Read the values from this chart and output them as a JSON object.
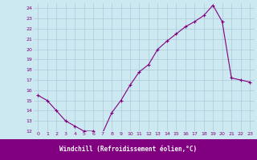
{
  "x": [
    0,
    1,
    2,
    3,
    4,
    5,
    6,
    7,
    8,
    9,
    10,
    11,
    12,
    13,
    14,
    15,
    16,
    17,
    18,
    19,
    20,
    21,
    22,
    23
  ],
  "y": [
    15.5,
    15.0,
    14.0,
    13.0,
    12.5,
    12.0,
    12.0,
    11.8,
    13.8,
    15.0,
    16.5,
    17.8,
    18.5,
    20.0,
    20.8,
    21.5,
    22.2,
    22.7,
    23.3,
    24.3,
    22.7,
    17.2,
    17.0,
    16.8
  ],
  "xlabel": "Windchill (Refroidissement éolien,°C)",
  "xlim_left": -0.5,
  "xlim_right": 23.5,
  "ylim_bottom": 12,
  "ylim_top": 24.5,
  "yticks": [
    12,
    13,
    14,
    15,
    16,
    17,
    18,
    19,
    20,
    21,
    22,
    23,
    24
  ],
  "xticks": [
    0,
    1,
    2,
    3,
    4,
    5,
    6,
    7,
    8,
    9,
    10,
    11,
    12,
    13,
    14,
    15,
    16,
    17,
    18,
    19,
    20,
    21,
    22,
    23
  ],
  "line_color": "#800080",
  "marker": "+",
  "bg_color": "#cce8f0",
  "grid_color": "#b0c8d8",
  "tick_label_color": "#800080",
  "xlabel_bg_color": "#800080",
  "xlabel_text_color": "#ffffff"
}
